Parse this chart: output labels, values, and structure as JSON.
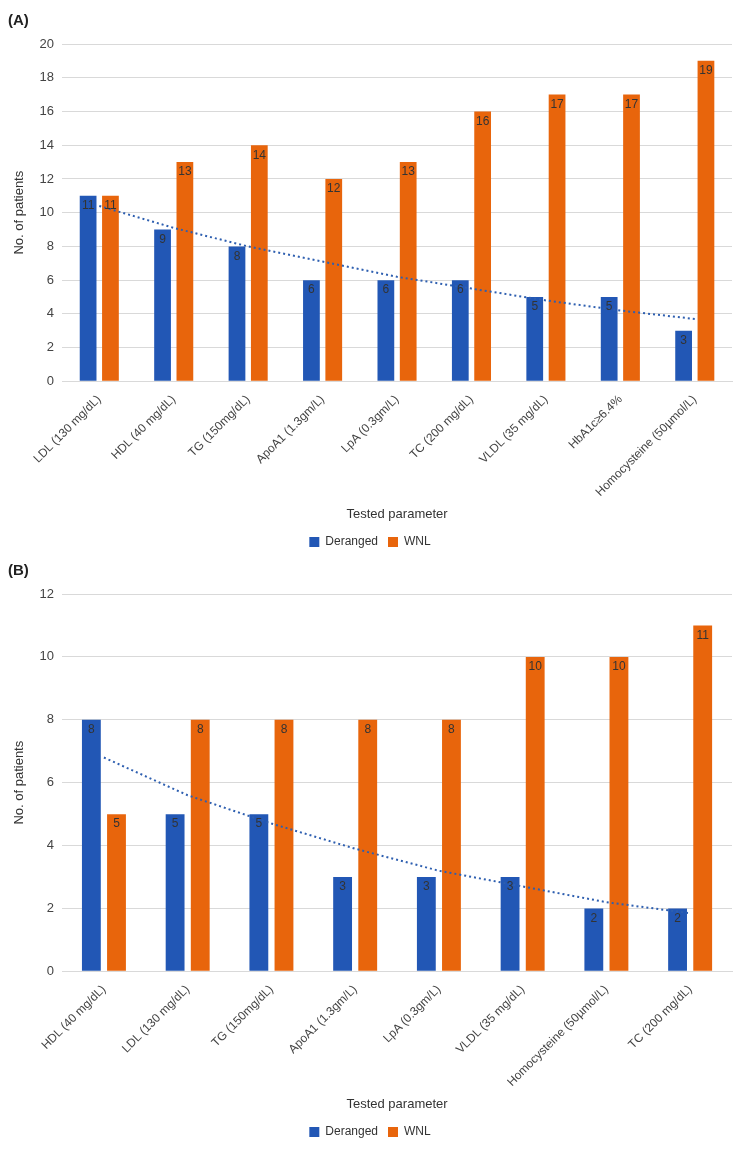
{
  "chart_data": [
    {
      "type": "bar",
      "title": "(A)",
      "xlabel": "Tested parameter",
      "ylabel": "No. of patients",
      "categories": [
        "LDL (130 mg/dL)",
        "HDL (40 mg/dL)",
        "TG (150mg/dL)",
        "ApoA1 (1.3gm/L)",
        "LpA (0.3gm/L)",
        "TC (200 mg/dL)",
        "VLDL (35 mg/dL)",
        "HbA1c≥6.4%",
        "Homocysteine (50µmol/L)"
      ],
      "series": [
        {
          "name": "Deranged",
          "color": "#2257b5",
          "values": [
            11,
            9,
            8,
            6,
            6,
            6,
            5,
            5,
            3
          ],
          "value_labels": [
            "11",
            "9",
            "8",
            "6",
            "6",
            "6",
            "5",
            "5",
            "3"
          ]
        },
        {
          "name": "WNL",
          "color": "#e8650c",
          "values": [
            11,
            13,
            14,
            12,
            13,
            16,
            17,
            17,
            19
          ],
          "value_labels": [
            "11",
            "13",
            "14",
            "12",
            "13",
            "16",
            "17",
            "17",
            "19"
          ]
        },
        {
          "type": "line",
          "color": "#2e5fb0",
          "line_style": "dotted",
          "marker": "none",
          "values": [
            10.4,
            9.1,
            8.0,
            7.1,
            6.2,
            5.5,
            4.8,
            4.2,
            3.7
          ]
        }
      ],
      "ylim": [
        0,
        20
      ],
      "yticks": [
        0,
        2,
        4,
        6,
        8,
        10,
        12,
        14,
        16,
        18,
        20
      ],
      "grid": "y",
      "legend": "bottom"
    },
    {
      "type": "bar",
      "title": "(B)",
      "xlabel": "Tested parameter",
      "ylabel": "No. of patients",
      "categories": [
        "HDL (40 mg/dL)",
        "LDL (130 mg/dL)",
        "TG (150mg/dL)",
        "ApoA1 (1.3gm/L)",
        "LpA (0.3gm/L)",
        "VLDL (35 mg/dL)",
        "Homocysteine (50µmol/L)",
        "TC (200 mg/dL)"
      ],
      "series": [
        {
          "name": "Deranged",
          "color": "#2257b5",
          "values": [
            8,
            5,
            5,
            3,
            3,
            3,
            2,
            2
          ],
          "value_labels": [
            "8",
            "5",
            "5",
            "3",
            "3",
            "3",
            "2",
            "2"
          ]
        },
        {
          "name": "WNL",
          "color": "#e8650c",
          "values": [
            5,
            8,
            8,
            8,
            8,
            10,
            10,
            11
          ],
          "value_labels": [
            "5",
            "8",
            "8",
            "8",
            "8",
            "10",
            "10",
            "11"
          ]
        },
        {
          "type": "line",
          "color": "#2e5fb0",
          "line_style": "dotted",
          "marker": "none",
          "values": [
            6.8,
            5.6,
            4.7,
            3.9,
            3.2,
            2.7,
            2.2,
            1.85
          ]
        }
      ],
      "ylim": [
        0,
        12
      ],
      "yticks": [
        0,
        2,
        4,
        6,
        8,
        10,
        12
      ],
      "grid": "y",
      "legend": "bottom"
    }
  ]
}
